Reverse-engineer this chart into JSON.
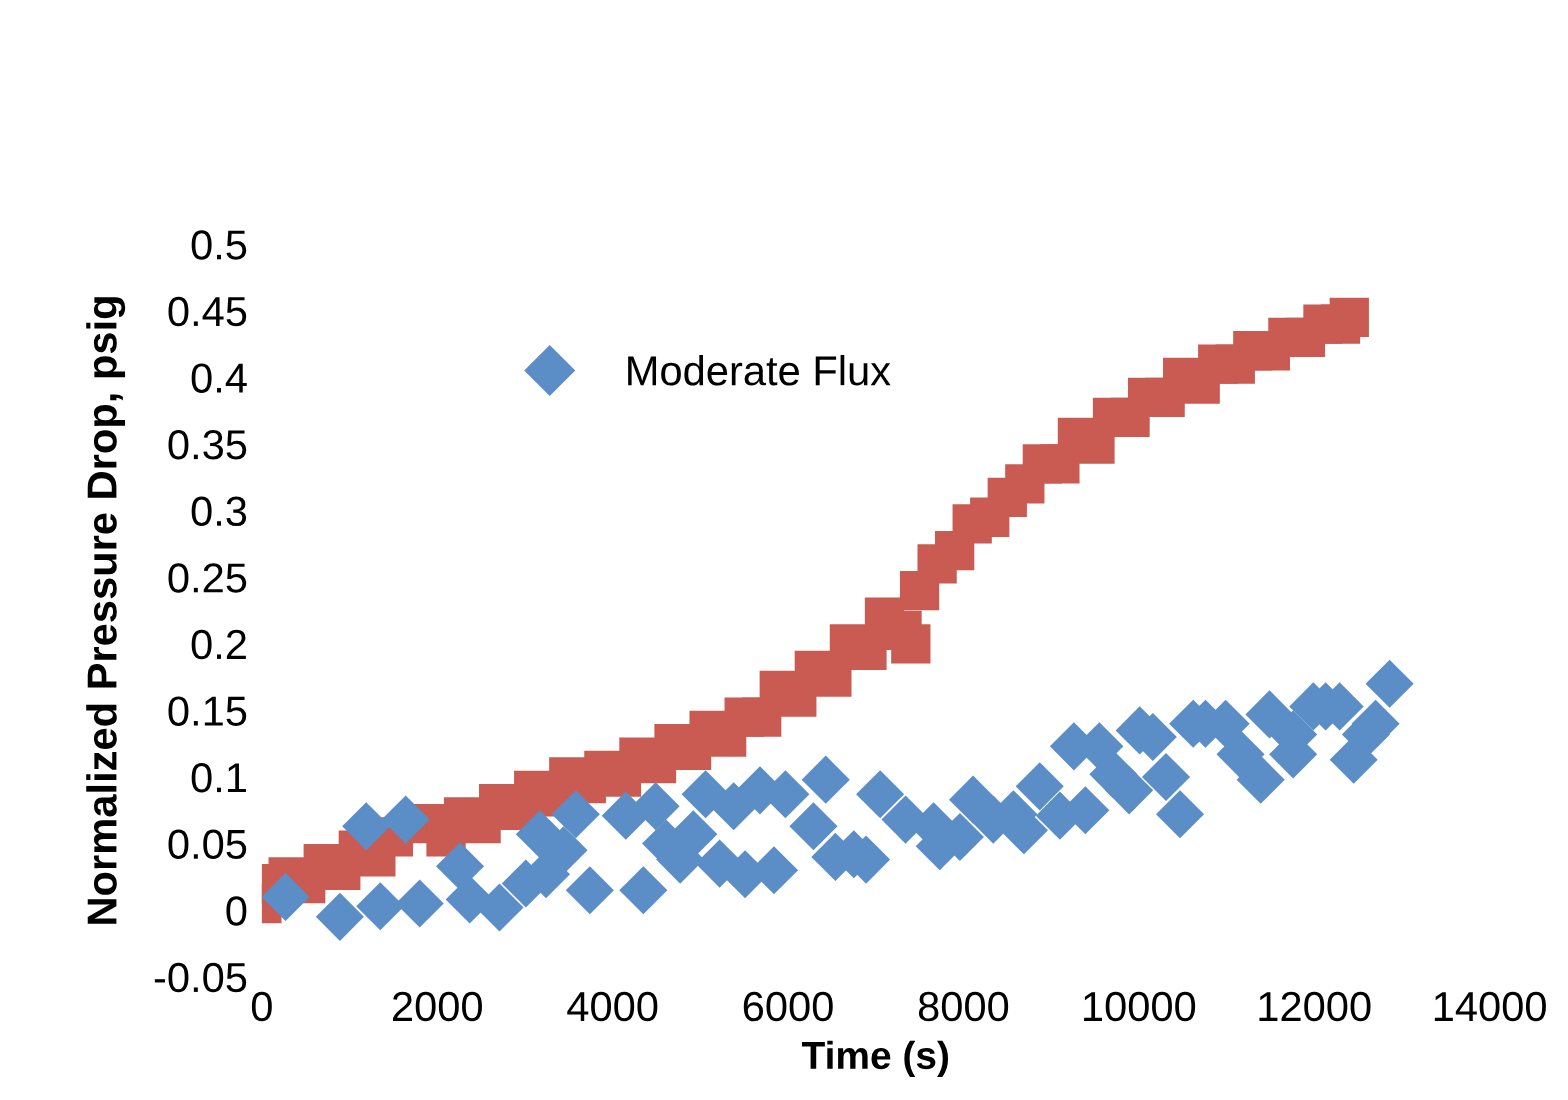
{
  "chart_data": {
    "type": "scatter",
    "xlabel": "Time (s)",
    "ylabel": "Normalized Pressure Drop, psig",
    "xlim": [
      0,
      14000
    ],
    "ylim": [
      -0.05,
      0.5
    ],
    "xticks": [
      0,
      2000,
      4000,
      6000,
      8000,
      10000,
      12000,
      14000
    ],
    "yticks": [
      {
        "value": -0.05,
        "label": "-0.05"
      },
      0,
      0.05,
      0.1,
      0.15,
      0.2,
      0.25,
      0.3,
      0.35,
      0.4,
      0.45,
      0.5
    ],
    "grid": false,
    "legend": "top left",
    "series": [
      {
        "color": "#c95b52",
        "marker": "square",
        "x": [
          0,
          100,
          300,
          500,
          700,
          900,
          1100,
          1300,
          1500,
          1900,
          2100,
          2300,
          2500,
          2700,
          2900,
          3100,
          3300,
          3500,
          3700,
          3900,
          4100,
          4300,
          4500,
          4700,
          4900,
          5100,
          5300,
          5500,
          5700,
          5900,
          6100,
          6300,
          6500,
          6700,
          6900,
          7100,
          7300,
          7400,
          7500,
          7700,
          7900,
          8100,
          8300,
          8500,
          8700,
          8900,
          9100,
          9300,
          9500,
          9700,
          9900,
          10100,
          10300,
          10500,
          10700,
          10900,
          11100,
          11300,
          11500,
          11700,
          11900,
          12100,
          12300,
          12400
        ],
        "values": [
          0.005,
          0.02,
          0.025,
          0.02,
          0.035,
          0.03,
          0.045,
          0.04,
          0.055,
          0.065,
          0.055,
          0.07,
          0.065,
          0.08,
          0.075,
          0.09,
          0.085,
          0.1,
          0.095,
          0.105,
          0.1,
          0.115,
          0.11,
          0.125,
          0.12,
          0.135,
          0.13,
          0.145,
          0.145,
          0.165,
          0.16,
          0.18,
          0.175,
          0.2,
          0.195,
          0.22,
          0.21,
          0.2,
          0.24,
          0.26,
          0.27,
          0.29,
          0.295,
          0.31,
          0.32,
          0.335,
          0.335,
          0.355,
          0.35,
          0.37,
          0.37,
          0.385,
          0.385,
          0.4,
          0.395,
          0.41,
          0.41,
          0.42,
          0.42,
          0.43,
          0.43,
          0.44,
          0.44,
          0.445
        ]
      },
      {
        "name": "Moderate Flux",
        "color": "#5b8ec7",
        "marker": "diamond",
        "x": [
          270,
          890,
          1190,
          1350,
          1640,
          1800,
          2260,
          2370,
          2710,
          3010,
          3170,
          3240,
          3440,
          3580,
          3740,
          4150,
          4350,
          4490,
          4610,
          4770,
          4920,
          5060,
          5220,
          5380,
          5510,
          5680,
          5840,
          5970,
          6290,
          6430,
          6540,
          6750,
          6890,
          7050,
          7340,
          7660,
          7730,
          7960,
          8110,
          8340,
          8570,
          8690,
          8870,
          9100,
          9260,
          9390,
          9550,
          9710,
          9890,
          10010,
          10160,
          10310,
          10470,
          10620,
          10760,
          10990,
          11160,
          11390,
          11490,
          11760,
          11760,
          11990,
          12130,
          12290,
          12450,
          12590,
          12700,
          12860
        ],
        "values": [
          0.01,
          -0.005,
          0.063,
          0.003,
          0.068,
          0.005,
          0.033,
          0.008,
          0.002,
          0.02,
          0.057,
          0.027,
          0.045,
          0.072,
          0.015,
          0.071,
          0.015,
          0.078,
          0.05,
          0.038,
          0.057,
          0.087,
          0.035,
          0.078,
          0.027,
          0.09,
          0.03,
          0.087,
          0.063,
          0.098,
          0.04,
          0.042,
          0.038,
          0.087,
          0.068,
          0.063,
          0.048,
          0.055,
          0.083,
          0.068,
          0.072,
          0.06,
          0.093,
          0.071,
          0.123,
          0.075,
          0.123,
          0.102,
          0.09,
          0.135,
          0.13,
          0.1,
          0.072,
          0.14,
          0.14,
          0.14,
          0.117,
          0.098,
          0.147,
          0.132,
          0.117,
          0.153,
          0.153,
          0.153,
          0.113,
          0.132,
          0.14,
          0.17
        ]
      }
    ]
  }
}
